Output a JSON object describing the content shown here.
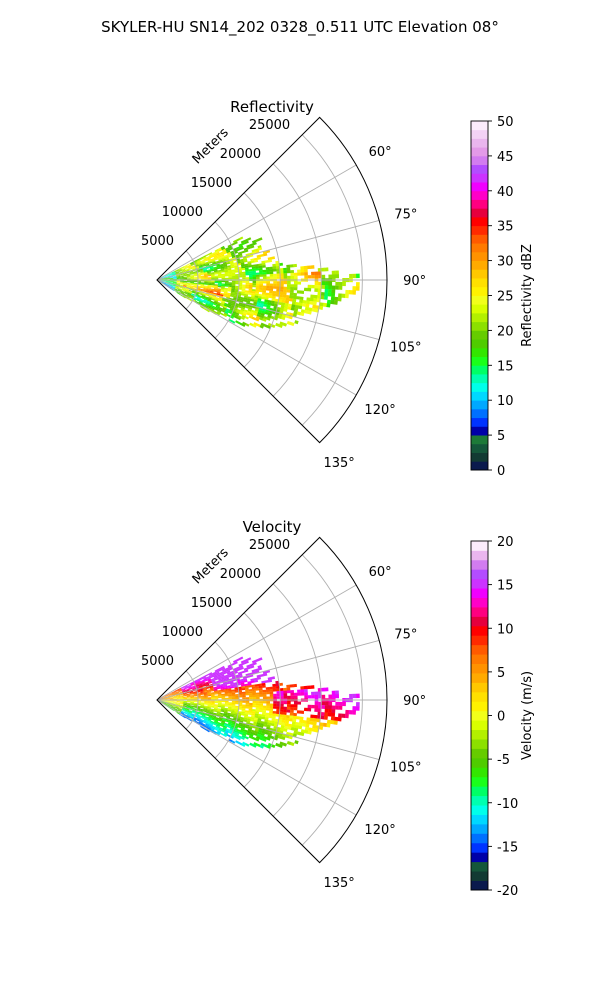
{
  "figure": {
    "suptitle": "SKYLER-HU  SN14_202  0328_0.511 UTC Elevation 08°"
  },
  "chart_data": [
    {
      "type": "heatmap",
      "projection": "polar-sector",
      "title": "Reflectivity",
      "range_label": "Meters",
      "range_ticks": [
        5000,
        10000,
        15000,
        20000,
        25000
      ],
      "range_lim": [
        0,
        28000
      ],
      "azimuth_lim": [
        45,
        135
      ],
      "azimuth_ticks": [
        "60°",
        "75°",
        "90°",
        "105°",
        "120°",
        "135°"
      ],
      "grid": true,
      "colorbar": {
        "label": "Reflectivity dBZ",
        "min": 0,
        "max": 50,
        "ticks": [
          0,
          5,
          10,
          15,
          20,
          25,
          30,
          35,
          40,
          45,
          50
        ],
        "colors": [
          "#0b1a4d",
          "#123a33",
          "#14573a",
          "#1d7a38",
          "#0000a8",
          "#0033ff",
          "#0070ff",
          "#00a8ff",
          "#00d8ff",
          "#00ffea",
          "#00ffb0",
          "#00ff66",
          "#1aff1a",
          "#33e600",
          "#4fcc00",
          "#66cc00",
          "#8ce000",
          "#b3f000",
          "#d9ff00",
          "#f2ff1a",
          "#fff200",
          "#ffe000",
          "#ffc800",
          "#ffaa00",
          "#ff9200",
          "#ff7a00",
          "#ff5a00",
          "#ff2a00",
          "#ff0000",
          "#e6003d",
          "#ff0080",
          "#ff00c8",
          "#f000ff",
          "#cc33ff",
          "#b34dff",
          "#d27cf0",
          "#e39ae8",
          "#eab6ee",
          "#f3d2f5",
          "#fbecfb"
        ]
      },
      "echo_value_range": [
        8,
        36
      ]
    },
    {
      "type": "heatmap",
      "projection": "polar-sector",
      "title": "Velocity",
      "range_label": "Meters",
      "range_ticks": [
        5000,
        10000,
        15000,
        20000,
        25000
      ],
      "range_lim": [
        0,
        28000
      ],
      "azimuth_lim": [
        45,
        135
      ],
      "azimuth_ticks": [
        "60°",
        "75°",
        "90°",
        "105°",
        "120°",
        "135°"
      ],
      "grid": true,
      "colorbar": {
        "label": "Velocity (m/s)",
        "min": -20,
        "max": 20,
        "ticks": [
          -20,
          -15,
          -10,
          -5,
          0,
          5,
          10,
          15,
          20
        ],
        "colors": [
          "#0b1a4d",
          "#123a33",
          "#14573a",
          "#0000a8",
          "#0033ff",
          "#0070ff",
          "#00a8ff",
          "#00d8ff",
          "#00ffea",
          "#00ffb0",
          "#00ff66",
          "#1aff1a",
          "#33e600",
          "#4fcc00",
          "#66cc00",
          "#8ce000",
          "#b3f000",
          "#d9ff00",
          "#f2ff1a",
          "#fff200",
          "#ffe000",
          "#ffc800",
          "#ffaa00",
          "#ff9200",
          "#ff7a00",
          "#ff5a00",
          "#ff2a00",
          "#ff0000",
          "#e6003d",
          "#ff0080",
          "#ff00c8",
          "#f000ff",
          "#cc33ff",
          "#b34dff",
          "#d27cf0",
          "#eab6ee",
          "#fbecfb"
        ]
      },
      "echo_value_range": [
        -14,
        15
      ]
    }
  ]
}
